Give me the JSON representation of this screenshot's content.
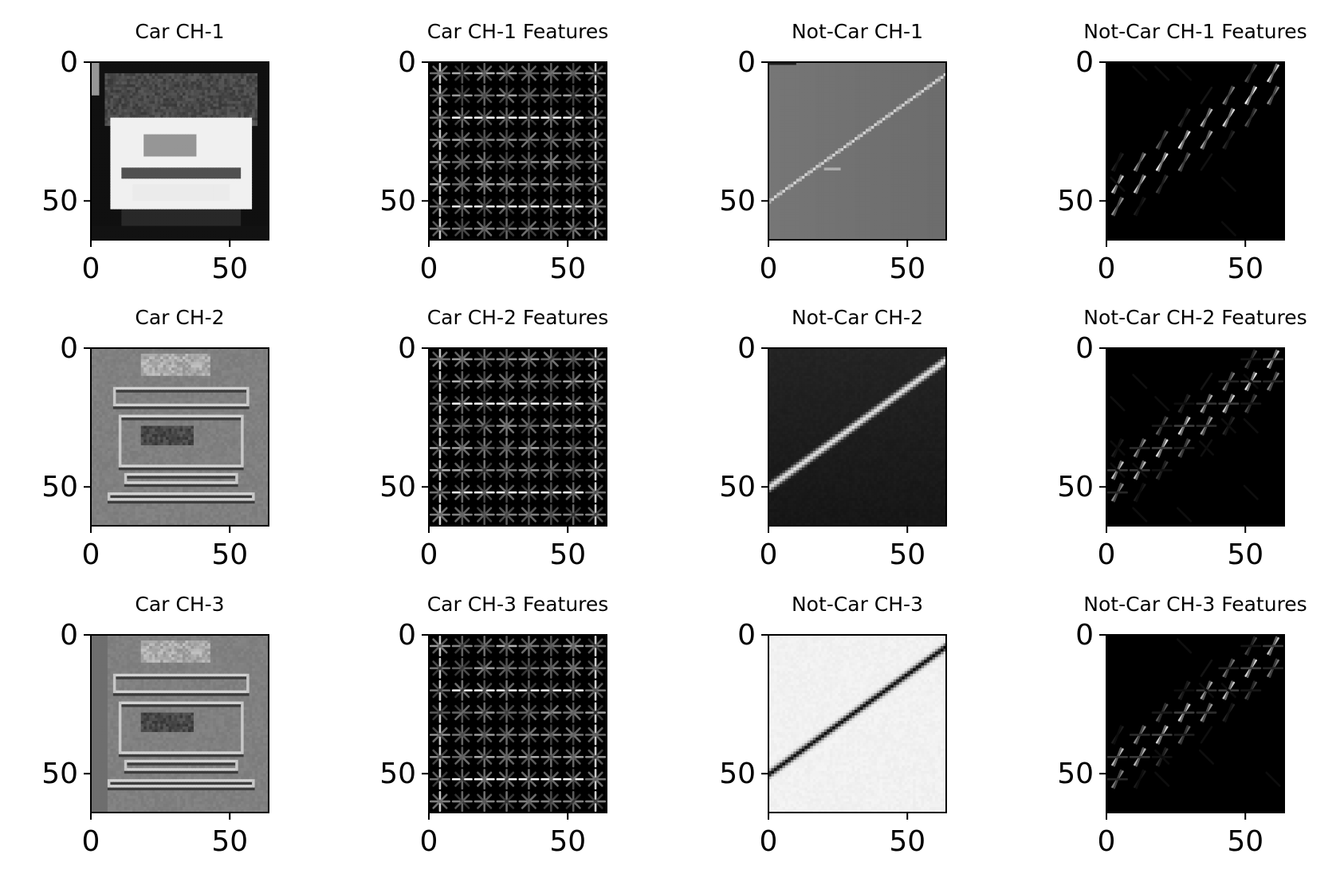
{
  "figure": {
    "background": "#ffffff",
    "rows": 3,
    "cols": 4,
    "panels": [
      {
        "title": "Car CH-1",
        "kind": "car-image",
        "channel": 1
      },
      {
        "title": "Car CH-1 Features",
        "kind": "car-hog",
        "channel": 1
      },
      {
        "title": "Not-Car CH-1",
        "kind": "road-image",
        "channel": 1
      },
      {
        "title": "Not-Car CH-1 Features",
        "kind": "road-hog",
        "channel": 1
      },
      {
        "title": "Car CH-2",
        "kind": "car-image",
        "channel": 2
      },
      {
        "title": "Car CH-2 Features",
        "kind": "car-hog",
        "channel": 2
      },
      {
        "title": "Not-Car CH-2",
        "kind": "road-image",
        "channel": 2
      },
      {
        "title": "Not-Car CH-2 Features",
        "kind": "road-hog",
        "channel": 2
      },
      {
        "title": "Car CH-3",
        "kind": "car-image",
        "channel": 3
      },
      {
        "title": "Car CH-3 Features",
        "kind": "car-hog",
        "channel": 3
      },
      {
        "title": "Not-Car CH-3",
        "kind": "road-image",
        "channel": 3
      },
      {
        "title": "Not-Car CH-3 Features",
        "kind": "road-hog",
        "channel": 3
      }
    ]
  },
  "chart_data": {
    "type": "heatmap",
    "image_size": [
      64,
      64
    ],
    "colormap": "gray",
    "x": {
      "lim": [
        0,
        64
      ],
      "ticks": [
        0,
        50
      ],
      "tick_labels": [
        "0",
        "50"
      ]
    },
    "y": {
      "lim": [
        64,
        0
      ],
      "ticks": [
        0,
        50
      ],
      "tick_labels": [
        "0",
        "50"
      ],
      "inverted": true
    },
    "hog": {
      "pixels_per_cell": 8,
      "cells_per_side": 8
    }
  }
}
